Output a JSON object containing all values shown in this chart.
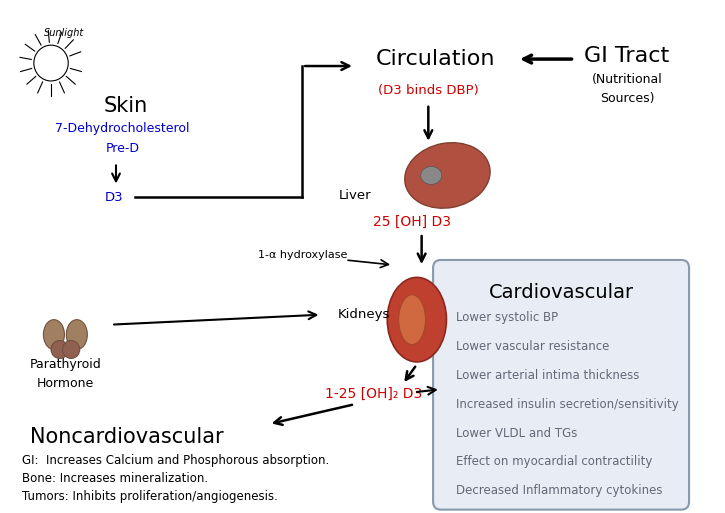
{
  "bg_color": "#ffffff",
  "fig_width": 7.25,
  "fig_height": 5.13,
  "dpi": 100,
  "sunlight_text": "Sunlight",
  "skin_text": "Skin",
  "skin_sub_text": "7-Dehydrocholesterol\nPre-D",
  "d3_text": "D3",
  "liver_text": "Liver",
  "circulation_text": "Circulation",
  "d3_dbp_text": "(D3 binds DBP)",
  "gi_tract_text": "GI Tract",
  "gi_sub_text": "(Nutritional\nSources)",
  "oh_d3_text": "25 [OH] D3",
  "hydroxylase_text": "1-α hydroxylase",
  "kidneys_text": "Kidneys",
  "parathyroid_text": "Parathyroid\nHormone",
  "oh2_d3_text": "1-25 [OH]₂ D3",
  "noncardio_title": "Noncardiovascular",
  "noncardio_lines": [
    "GI:  Increases Calcium and Phosphorous absorption.",
    "Bone: Increases mineralization.",
    "Tumors: Inhibits proliferation/angiogenesis."
  ],
  "cardio_title": "Cardiovascular",
  "cardio_items": [
    "Lower systolic BP",
    "Lower vascular resistance",
    "Lower arterial intima thickness",
    "Increased insulin secretion/sensitivity",
    "Lower VLDL and TGs",
    "Effect on myocardial contractility",
    "Decreased Inflammatory cytokines"
  ],
  "red_color": "#cc0000",
  "blue_color": "#0000cc",
  "black_color": "#000000",
  "cardio_text_color": "#666677",
  "cardio_box_bg": "#e8edf5",
  "cardio_box_border": "#8899aa"
}
